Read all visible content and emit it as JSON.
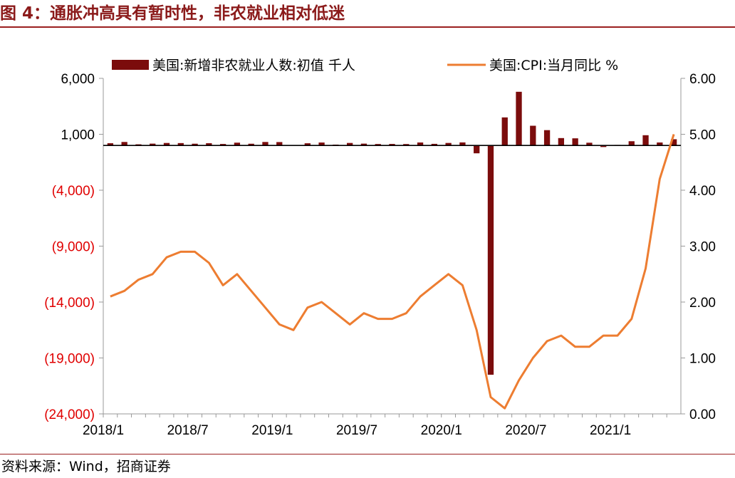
{
  "figure": {
    "title": "图 4：通胀冲高具有暂时性，非农就业相对低迷",
    "source": "资料来源：Wind，招商证券"
  },
  "chart_data": {
    "type": "bar+line",
    "categories": [
      "2018/1",
      "2018/2",
      "2018/3",
      "2018/4",
      "2018/5",
      "2018/6",
      "2018/7",
      "2018/8",
      "2018/9",
      "2018/10",
      "2018/11",
      "2018/12",
      "2019/1",
      "2019/2",
      "2019/3",
      "2019/4",
      "2019/5",
      "2019/6",
      "2019/7",
      "2019/8",
      "2019/9",
      "2019/10",
      "2019/11",
      "2019/12",
      "2020/1",
      "2020/2",
      "2020/3",
      "2020/4",
      "2020/5",
      "2020/6",
      "2020/7",
      "2020/8",
      "2020/9",
      "2020/10",
      "2020/11",
      "2020/12",
      "2021/1",
      "2021/2",
      "2021/3",
      "2021/4",
      "2021/5"
    ],
    "x_tick_labels": [
      "2018/1",
      "2018/7",
      "2019/1",
      "2019/7",
      "2020/1",
      "2020/7",
      "2021/1"
    ],
    "series": [
      {
        "name": "美国:新增非农就业人数:初值 千人",
        "type": "bar",
        "axis": "left",
        "color": "#7b0c0c",
        "values": [
          200,
          313,
          103,
          164,
          223,
          213,
          157,
          201,
          134,
          250,
          155,
          312,
          304,
          20,
          196,
          263,
          75,
          224,
          164,
          130,
          136,
          128,
          266,
          145,
          225,
          273,
          -701,
          -20500,
          2509,
          4800,
          1763,
          1371,
          661,
          638,
          245,
          -140,
          49,
          379,
          916,
          266,
          559
        ]
      },
      {
        "name": "美国:CPI:当月同比 %",
        "type": "line",
        "axis": "right",
        "color": "#ed7d31",
        "values": [
          2.1,
          2.2,
          2.4,
          2.5,
          2.8,
          2.9,
          2.9,
          2.7,
          2.3,
          2.5,
          2.2,
          1.9,
          1.6,
          1.5,
          1.9,
          2.0,
          1.8,
          1.6,
          1.8,
          1.7,
          1.7,
          1.8,
          2.1,
          2.3,
          2.5,
          2.3,
          1.5,
          0.3,
          0.1,
          0.6,
          1.0,
          1.3,
          1.4,
          1.2,
          1.2,
          1.4,
          1.4,
          1.7,
          2.6,
          4.2,
          5.0
        ]
      }
    ],
    "y_left": {
      "min": -24000,
      "max": 6000,
      "ticks": [
        6000,
        1000,
        -4000,
        -9000,
        -14000,
        -19000,
        -24000
      ],
      "tick_labels": [
        "6,000",
        "1,000",
        "(4,000)",
        "(9,000)",
        "(14,000)",
        "(19,000)",
        "(24,000)"
      ],
      "negative_color": "#e00000",
      "positive_color": "#000000"
    },
    "y_right": {
      "min": 0,
      "max": 6,
      "ticks": [
        6,
        5,
        4,
        3,
        2,
        1,
        0
      ],
      "tick_labels": [
        "6.00",
        "5.00",
        "4.00",
        "3.00",
        "2.00",
        "1.00",
        "0.00"
      ]
    },
    "grid": false,
    "legend_position": "top"
  }
}
